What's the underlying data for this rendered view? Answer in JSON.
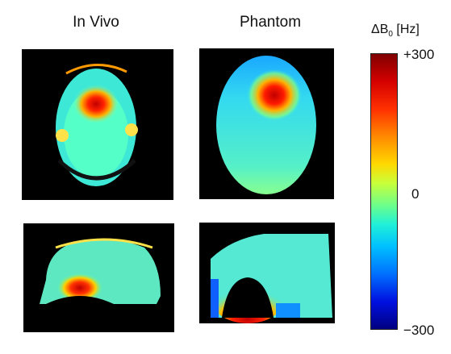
{
  "figure": {
    "columns": {
      "in_vivo": "In Vivo",
      "phantom": "Phantom"
    },
    "colorbar": {
      "symbol": "ΔB",
      "subscript": "0",
      "unit": "[Hz]",
      "ticks": {
        "max": "+300",
        "zero": "0",
        "min": "−300"
      }
    },
    "panels": [
      {
        "name": "in-vivo-axial-fieldmap",
        "view": "axial",
        "source": "in vivo"
      },
      {
        "name": "phantom-axial-fieldmap",
        "view": "axial",
        "source": "phantom"
      },
      {
        "name": "in-vivo-sagittal-fieldmap",
        "view": "sagittal",
        "source": "in vivo"
      },
      {
        "name": "phantom-sagittal-fieldmap",
        "view": "sagittal",
        "source": "phantom"
      }
    ],
    "colormap": "jet"
  }
}
